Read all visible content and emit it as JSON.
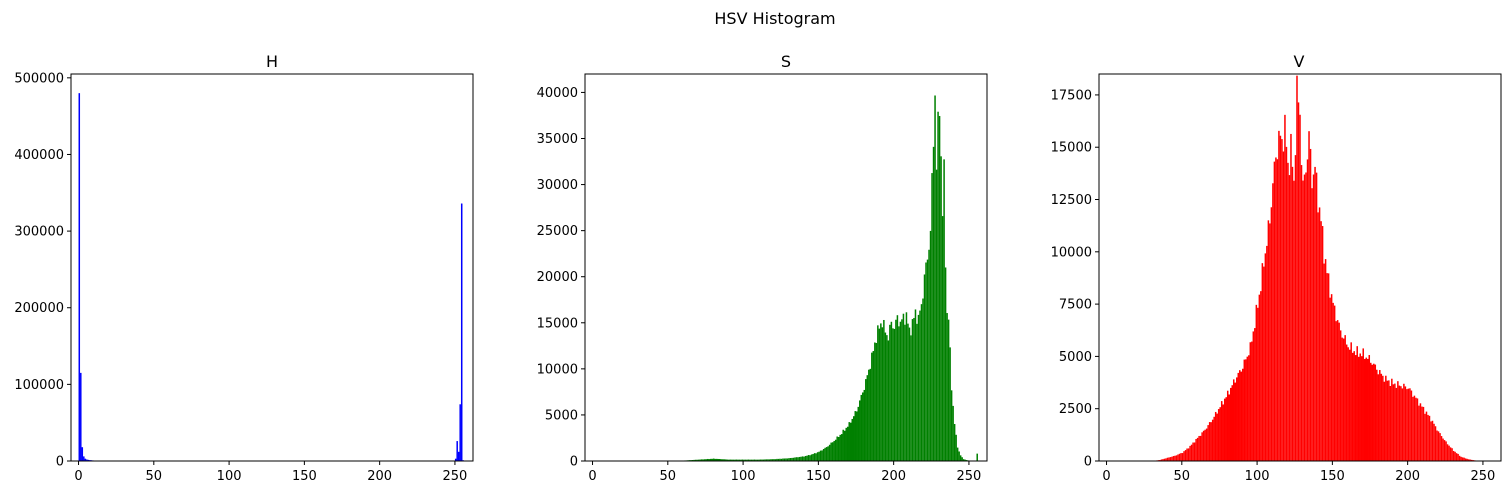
{
  "figure": {
    "suptitle": "HSV Histogram"
  },
  "chart_data": [
    {
      "type": "bar",
      "title": "H",
      "color": "#0000ff",
      "xlim": [
        -5,
        262
      ],
      "ylim": [
        0,
        505000
      ],
      "xticks": [
        0,
        50,
        100,
        150,
        200,
        250
      ],
      "yticks": [
        0,
        100000,
        200000,
        300000,
        400000,
        500000
      ],
      "bins": [
        0,
        1,
        2,
        3,
        4,
        5,
        6,
        7,
        8,
        9,
        10,
        15,
        20,
        30,
        40,
        50,
        100,
        150,
        200,
        240,
        250,
        251,
        252,
        253,
        254,
        255
      ],
      "values": [
        480000,
        115000,
        18000,
        6000,
        3000,
        2000,
        1500,
        1200,
        1000,
        800,
        600,
        300,
        200,
        150,
        100,
        80,
        50,
        60,
        80,
        200,
        3000,
        26000,
        12000,
        74000,
        336000,
        1000
      ]
    },
    {
      "type": "bar",
      "title": "S",
      "color": "#008000",
      "xlim": [
        -5,
        262
      ],
      "ylim": [
        0,
        42000
      ],
      "xticks": [
        0,
        50,
        100,
        150,
        200,
        250
      ],
      "yticks": [
        0,
        5000,
        10000,
        15000,
        20000,
        25000,
        30000,
        35000,
        40000
      ],
      "points": [
        [
          0,
          0
        ],
        [
          55,
          0
        ],
        [
          60,
          50
        ],
        [
          70,
          150
        ],
        [
          75,
          200
        ],
        [
          80,
          250
        ],
        [
          85,
          200
        ],
        [
          90,
          150
        ],
        [
          100,
          150
        ],
        [
          110,
          150
        ],
        [
          120,
          200
        ],
        [
          130,
          300
        ],
        [
          140,
          500
        ],
        [
          145,
          700
        ],
        [
          150,
          1000
        ],
        [
          155,
          1500
        ],
        [
          160,
          2200
        ],
        [
          165,
          3000
        ],
        [
          170,
          4000
        ],
        [
          175,
          5500
        ],
        [
          180,
          8000
        ],
        [
          184,
          10500
        ],
        [
          188,
          13500
        ],
        [
          190,
          14500
        ],
        [
          192,
          15200
        ],
        [
          194,
          14000
        ],
        [
          196,
          13500
        ],
        [
          198,
          15000
        ],
        [
          200,
          14500
        ],
        [
          202,
          15500
        ],
        [
          204,
          15000
        ],
        [
          206,
          15500
        ],
        [
          208,
          15800
        ],
        [
          210,
          14000
        ],
        [
          212,
          15000
        ],
        [
          214,
          16000
        ],
        [
          216,
          15500
        ],
        [
          218,
          16800
        ],
        [
          220,
          20000
        ],
        [
          222,
          22000
        ],
        [
          224,
          25000
        ],
        [
          226,
          35000
        ],
        [
          227,
          40000
        ],
        [
          228,
          32000
        ],
        [
          229,
          36000
        ],
        [
          230,
          39000
        ],
        [
          231,
          33000
        ],
        [
          232,
          27000
        ],
        [
          233,
          31000
        ],
        [
          234,
          22000
        ],
        [
          235,
          16000
        ],
        [
          236,
          15500
        ],
        [
          238,
          8000
        ],
        [
          240,
          4000
        ],
        [
          242,
          1500
        ],
        [
          244,
          600
        ],
        [
          246,
          200
        ],
        [
          248,
          100
        ],
        [
          250,
          30
        ],
        [
          252,
          10
        ],
        [
          254,
          0
        ],
        [
          255,
          800
        ]
      ]
    },
    {
      "type": "bar",
      "title": "V",
      "color": "#ff0000",
      "xlim": [
        -5,
        262
      ],
      "ylim": [
        0,
        18500
      ],
      "xticks": [
        0,
        50,
        100,
        150,
        200,
        250
      ],
      "yticks": [
        0,
        2500,
        5000,
        7500,
        10000,
        12500,
        15000,
        17500
      ],
      "points": [
        [
          0,
          0
        ],
        [
          30,
          0
        ],
        [
          35,
          50
        ],
        [
          40,
          150
        ],
        [
          45,
          250
        ],
        [
          50,
          400
        ],
        [
          55,
          700
        ],
        [
          60,
          1100
        ],
        [
          65,
          1500
        ],
        [
          70,
          2000
        ],
        [
          75,
          2600
        ],
        [
          80,
          3200
        ],
        [
          85,
          3900
        ],
        [
          90,
          4500
        ],
        [
          95,
          5400
        ],
        [
          98,
          6600
        ],
        [
          100,
          7500
        ],
        [
          102,
          8400
        ],
        [
          104,
          9500
        ],
        [
          106,
          10500
        ],
        [
          108,
          11500
        ],
        [
          110,
          13300
        ],
        [
          112,
          14500
        ],
        [
          114,
          15500
        ],
        [
          116,
          15200
        ],
        [
          118,
          16000
        ],
        [
          120,
          14000
        ],
        [
          122,
          15000
        ],
        [
          124,
          13200
        ],
        [
          126,
          17700
        ],
        [
          128,
          16500
        ],
        [
          130,
          13000
        ],
        [
          132,
          14000
        ],
        [
          134,
          15500
        ],
        [
          136,
          13500
        ],
        [
          138,
          14000
        ],
        [
          140,
          12500
        ],
        [
          142,
          11500
        ],
        [
          144,
          10000
        ],
        [
          146,
          9000
        ],
        [
          150,
          7500
        ],
        [
          155,
          6200
        ],
        [
          160,
          5500
        ],
        [
          165,
          5200
        ],
        [
          170,
          5100
        ],
        [
          175,
          4800
        ],
        [
          180,
          4300
        ],
        [
          185,
          3900
        ],
        [
          190,
          3700
        ],
        [
          195,
          3600
        ],
        [
          200,
          3500
        ],
        [
          205,
          3000
        ],
        [
          210,
          2500
        ],
        [
          215,
          2000
        ],
        [
          220,
          1400
        ],
        [
          225,
          900
        ],
        [
          230,
          500
        ],
        [
          235,
          200
        ],
        [
          240,
          80
        ],
        [
          245,
          20
        ],
        [
          250,
          0
        ],
        [
          255,
          0
        ]
      ]
    }
  ]
}
